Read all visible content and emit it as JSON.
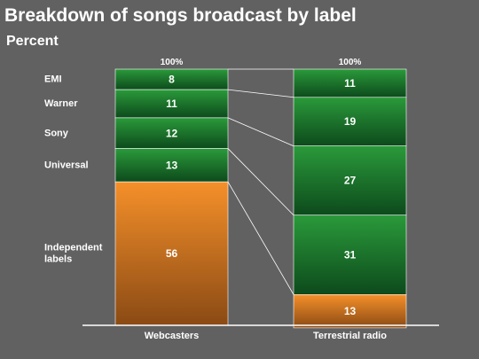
{
  "chart_data": {
    "type": "bar",
    "stacked": true,
    "title": "Breakdown of songs broadcast by label",
    "subtitle": "Percent",
    "categories": [
      "Webcasters",
      "Terrestrial radio"
    ],
    "totals_label": [
      "100%",
      "100%"
    ],
    "series": [
      {
        "name": "EMI",
        "values": [
          8,
          11
        ],
        "color": "#1f8a2f"
      },
      {
        "name": "Warner",
        "values": [
          11,
          19
        ],
        "color": "#1f8a2f"
      },
      {
        "name": "Sony",
        "values": [
          12,
          27
        ],
        "color": "#1f8a2f"
      },
      {
        "name": "Universal",
        "values": [
          13,
          31
        ],
        "color": "#1f8a2f"
      },
      {
        "name": "Independent labels",
        "values": [
          56,
          13
        ],
        "color": "#f08a24"
      }
    ],
    "ylim": [
      0,
      100
    ],
    "grid": false,
    "legend": "left"
  }
}
